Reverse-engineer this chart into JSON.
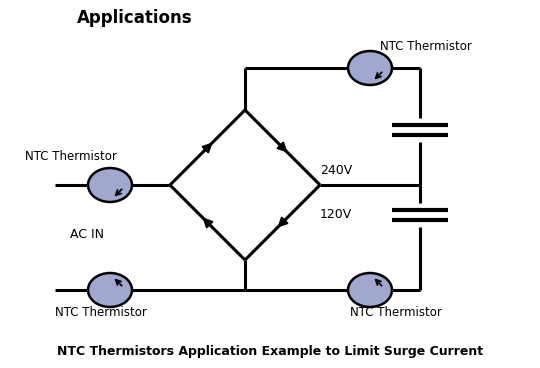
{
  "title": "Applications",
  "bottom_title": "NTC Thermistors Application Example to Limit Surge Current",
  "bg_color": "#ffffff",
  "line_color": "#000000",
  "thermistor_color": "#a0a8d0",
  "thermistor_edge": "#000000",
  "text_color": "#000000",
  "label_240v": "240V",
  "label_120v": "120V",
  "label_acin": "AC IN",
  "label_ntc": "NTC Thermistor",
  "fig_width": 5.4,
  "fig_height": 3.68,
  "dpi": 100
}
